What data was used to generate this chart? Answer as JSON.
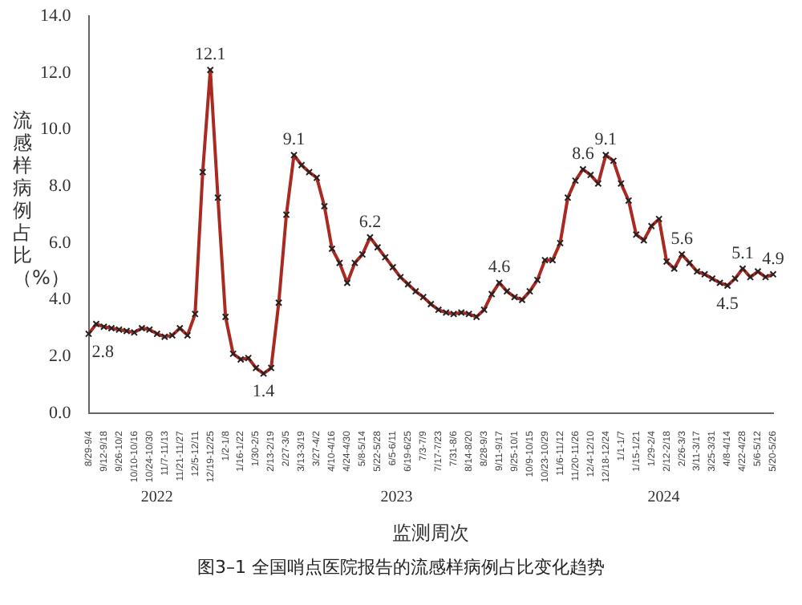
{
  "chart_data": {
    "type": "line",
    "title": "图3–1 全国哨点医院报告的流感样病例占比变化趋势",
    "xlabel": "监测周次",
    "ylabel": "流感样病例占比（%）",
    "categories": [
      "8/29-9/4",
      null,
      "9/12-9/18",
      null,
      "9/26-10/2",
      null,
      "10/10-10/16",
      null,
      "10/24-10/30",
      null,
      "11/7-11/13",
      null,
      "11/21-11/27",
      null,
      "12/5-12/11",
      null,
      "12/19-12/25",
      null,
      "1/2-1/8",
      null,
      "1/16-1/22",
      null,
      "1/30-2/5",
      null,
      "2/13-2/19",
      null,
      "2/27-3/5",
      null,
      "3/13-3/19",
      null,
      "3/27-4/2",
      null,
      "4/10-4/16",
      null,
      "4/24-4/30",
      null,
      "5/8-5/14",
      null,
      "5/22-5/28",
      null,
      "6/5-6/11",
      null,
      "6/19-6/25",
      null,
      "7/3-7/9",
      null,
      "7/17-7/23",
      null,
      "7/31-8/6",
      null,
      "8/14-8/20",
      null,
      "8/28-9/3",
      null,
      "9/11-9/17",
      null,
      "9/25-10/1",
      null,
      "10/9-10/15",
      null,
      "10/23-10/29",
      null,
      "11/6-11/12",
      null,
      "11/20-11/26",
      null,
      "12/4-12/10",
      null,
      "12/18-12/24",
      null,
      "1/1-1/7",
      null,
      "1/15-1/21",
      null,
      "1/29-2/4",
      null,
      "2/12-2/18",
      null,
      "2/26-3/3",
      null,
      "3/11-3/17",
      null,
      "3/25-3/31",
      null,
      "4/8-4/14",
      null,
      "4/22-4/28",
      null,
      "5/6-5/12",
      null,
      "5/20-5/26"
    ],
    "series": [
      {
        "color": "#a82a22",
        "values": [
          2.8,
          3.15,
          3.05,
          3.0,
          2.95,
          2.9,
          2.85,
          3.0,
          2.95,
          2.8,
          2.7,
          2.75,
          3.0,
          2.75,
          3.5,
          8.5,
          12.1,
          7.6,
          3.4,
          2.1,
          1.9,
          1.95,
          1.6,
          1.4,
          1.6,
          3.9,
          7.0,
          9.1,
          8.75,
          8.5,
          8.3,
          7.3,
          5.8,
          5.3,
          4.6,
          5.3,
          5.6,
          6.2,
          5.85,
          5.5,
          5.15,
          4.8,
          4.55,
          4.3,
          4.1,
          3.85,
          3.65,
          3.55,
          3.5,
          3.55,
          3.5,
          3.4,
          3.65,
          4.2,
          4.6,
          4.3,
          4.1,
          4.0,
          4.3,
          4.7,
          5.4,
          5.4,
          6.0,
          7.6,
          8.2,
          8.6,
          8.4,
          8.1,
          9.1,
          8.9,
          8.1,
          7.5,
          6.3,
          6.1,
          6.6,
          6.85,
          5.35,
          5.1,
          5.6,
          5.3,
          5.0,
          4.9,
          4.75,
          4.6,
          4.5,
          4.75,
          5.1,
          4.8,
          5.0,
          4.8,
          4.9
        ],
        "value_labels": [
          "2.8",
          null,
          null,
          null,
          null,
          null,
          null,
          null,
          null,
          null,
          null,
          null,
          null,
          null,
          null,
          null,
          "12.1",
          null,
          null,
          null,
          null,
          null,
          null,
          "1.4",
          null,
          null,
          null,
          "9.1",
          null,
          null,
          null,
          null,
          null,
          null,
          null,
          null,
          null,
          "6.2",
          null,
          null,
          null,
          null,
          null,
          null,
          null,
          null,
          null,
          null,
          null,
          null,
          null,
          null,
          null,
          null,
          "4.6",
          null,
          null,
          null,
          null,
          null,
          null,
          null,
          null,
          null,
          null,
          "8.6",
          null,
          null,
          "9.1",
          null,
          null,
          null,
          null,
          null,
          null,
          null,
          null,
          null,
          "5.6",
          null,
          null,
          null,
          null,
          null,
          "4.5",
          null,
          "5.1",
          null,
          null,
          null,
          "4.9"
        ]
      }
    ],
    "ylim": [
      0,
      14
    ],
    "yticks": [
      {
        "value": 0,
        "label": "0.0"
      },
      {
        "value": 2,
        "label": "2.0"
      },
      {
        "value": 4,
        "label": "4.0"
      },
      {
        "value": 6,
        "label": "6.0"
      },
      {
        "value": 8,
        "label": "8.0"
      },
      {
        "value": 10,
        "label": "10.0"
      },
      {
        "value": 12,
        "label": "12.0"
      },
      {
        "value": 14,
        "label": "14.0"
      }
    ],
    "annotations": [
      "2022",
      "2023",
      "2024"
    ],
    "grid": false,
    "legend": false,
    "marker": "cross",
    "line_style": "solid"
  }
}
